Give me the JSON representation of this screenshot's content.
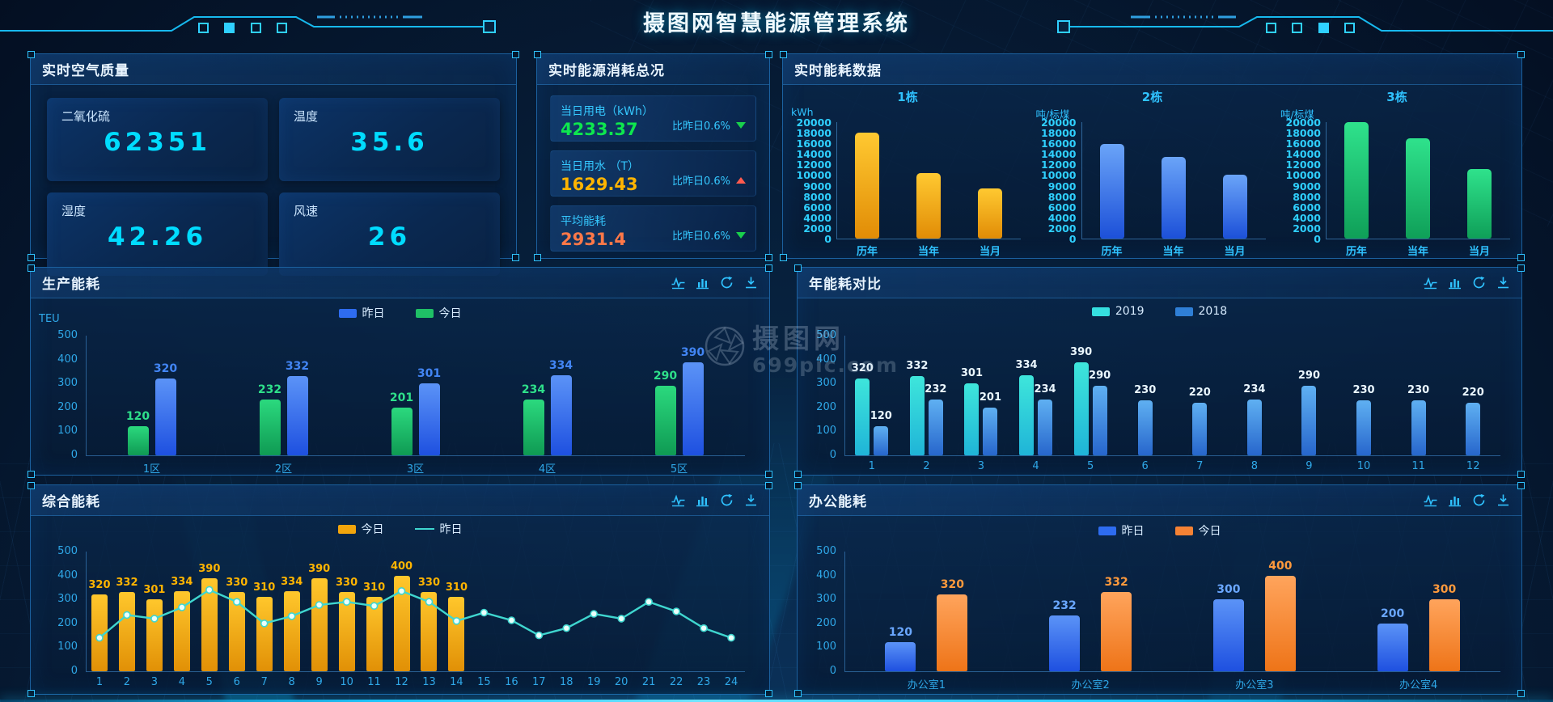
{
  "header": {
    "title": "摄图网智慧能源管理系统"
  },
  "watermark": {
    "brand": "摄图网",
    "site": "699pic.com"
  },
  "icons": {
    "toolbox": [
      "line-chart",
      "bar-chart",
      "refresh",
      "download"
    ]
  },
  "panels": {
    "air_quality": {
      "title": "实时空气质量",
      "value_color": "#00dcff",
      "cards": [
        {
          "label": "二氧化硫",
          "value": "62351"
        },
        {
          "label": "温度",
          "value": "35.6"
        },
        {
          "label": "湿度",
          "value": "42.26"
        },
        {
          "label": "风速",
          "value": "26"
        }
      ]
    },
    "energy_summary": {
      "title": "实时能源消耗总况",
      "rows": [
        {
          "label": "当日用电（kWh）",
          "value": "4233.37",
          "value_color": "#0ee64e",
          "compare_label": "比昨日0.6%",
          "trend": "down",
          "trend_color": "#19d04b"
        },
        {
          "label": "当日用水 （T）",
          "value": "1629.43",
          "value_color": "#ffb400",
          "compare_label": "比昨日0.6%",
          "trend": "up",
          "trend_color": "#ff5a4e"
        },
        {
          "label": "平均能耗",
          "value": "2931.4",
          "value_color": "#ff7848",
          "compare_label": "比昨日0.6%",
          "trend": "down",
          "trend_color": "#19d04b"
        }
      ]
    },
    "realtime_data": {
      "title": "实时能耗数据"
    },
    "production": {
      "title": "生产能耗"
    },
    "annual": {
      "title": "年能耗对比"
    },
    "comprehensive": {
      "title": "综合能耗"
    },
    "office": {
      "title": "办公能耗"
    }
  },
  "chart_data": [
    {
      "id": "building-1",
      "type": "bar",
      "title": "1栋",
      "ylabel": "kWh",
      "yticks": [
        0,
        2000,
        4000,
        6000,
        8000,
        9000,
        10000,
        12000,
        14000,
        16000,
        18000,
        20000
      ],
      "categories": [
        "历年",
        "当年",
        "当月"
      ],
      "values": [
        18000,
        10400,
        8700
      ],
      "bar_gradient": [
        "#ffc931",
        "#e18c06"
      ]
    },
    {
      "id": "building-2",
      "type": "bar",
      "title": "2栋",
      "ylabel": "吨/标煤",
      "yticks": [
        0,
        2000,
        4000,
        6000,
        8000,
        9000,
        10000,
        12000,
        14000,
        16000,
        18000,
        20000
      ],
      "categories": [
        "历年",
        "当年",
        "当月"
      ],
      "values": [
        15800,
        13400,
        10100
      ],
      "bar_gradient": [
        "#6aa4f8",
        "#1c50d8"
      ]
    },
    {
      "id": "building-3",
      "type": "bar",
      "title": "3栋",
      "ylabel": "吨/标煤",
      "yticks": [
        0,
        2000,
        4000,
        6000,
        8000,
        9000,
        10000,
        12000,
        14000,
        16000,
        18000,
        20000
      ],
      "categories": [
        "历年",
        "当年",
        "当月"
      ],
      "values": [
        20000,
        17000,
        11200
      ],
      "bar_gradient": [
        "#2fe28c",
        "#0f9f58"
      ]
    },
    {
      "id": "production",
      "type": "grouped-bar",
      "title": "生产能耗",
      "ylabel": "TEU",
      "yticks": [
        0,
        100,
        200,
        300,
        400,
        500
      ],
      "ylim": [
        0,
        500
      ],
      "categories": [
        "1区",
        "2区",
        "3区",
        "4区",
        "5区"
      ],
      "legend": [
        {
          "name": "昨日",
          "color": "#2e6cf0",
          "type": "bar"
        },
        {
          "name": "今日",
          "color": "#1fbf66",
          "type": "bar"
        }
      ],
      "series": [
        {
          "name": "今日",
          "gradient": [
            "#2bd97e",
            "#0f9a53"
          ],
          "label_color": "#2ee08a",
          "values": [
            120,
            232,
            201,
            234,
            290
          ]
        },
        {
          "name": "昨日",
          "gradient": [
            "#5b93f7",
            "#1e50e0"
          ],
          "label_color": "#4285f4",
          "values": [
            320,
            332,
            301,
            334,
            390
          ]
        }
      ]
    },
    {
      "id": "annual",
      "type": "grouped-bar",
      "title": "年能耗对比",
      "yticks": [
        0,
        100,
        200,
        300,
        400,
        500
      ],
      "ylim": [
        0,
        500
      ],
      "categories": [
        "1",
        "2",
        "3",
        "4",
        "5",
        "6",
        "7",
        "8",
        "9",
        "10",
        "11",
        "12"
      ],
      "legend": [
        {
          "name": "2019",
          "color": "#35dfe0",
          "type": "bar"
        },
        {
          "name": "2018",
          "color": "#2f7fd6",
          "type": "bar"
        }
      ],
      "series": [
        {
          "name": "2019",
          "gradient": [
            "#3ee6db",
            "#1fb4d8"
          ],
          "label_color": "#eaf7ff",
          "values": [
            320,
            332,
            301,
            334,
            390,
            null,
            null,
            null,
            null,
            null,
            null,
            null
          ]
        },
        {
          "name": "2018",
          "gradient": [
            "#5fb0f2",
            "#2766cc"
          ],
          "label_color": "#eaf7ff",
          "values": [
            120,
            232,
            201,
            234,
            290,
            230,
            220,
            234,
            290,
            230,
            230,
            220
          ]
        }
      ]
    },
    {
      "id": "comprehensive",
      "type": "bar-line",
      "title": "综合能耗",
      "yticks": [
        0,
        100,
        200,
        300,
        400,
        500
      ],
      "ylim": [
        0,
        500
      ],
      "categories": [
        "1",
        "2",
        "3",
        "4",
        "5",
        "6",
        "7",
        "8",
        "9",
        "10",
        "11",
        "12",
        "13",
        "14",
        "15",
        "16",
        "17",
        "18",
        "19",
        "20",
        "21",
        "22",
        "23",
        "24"
      ],
      "legend": [
        {
          "name": "今日",
          "color": "#f2a50c",
          "type": "bar"
        },
        {
          "name": "昨日",
          "color": "#3fd6cf",
          "type": "line"
        }
      ],
      "bars": {
        "name": "今日",
        "gradient": [
          "#ffc72c",
          "#e19006"
        ],
        "label_color": "#ffb400",
        "values": [
          320,
          332,
          301,
          334,
          390,
          330,
          310,
          334,
          390,
          330,
          310,
          400,
          330,
          310,
          null,
          null,
          null,
          null,
          null,
          null,
          null,
          null,
          null,
          null
        ]
      },
      "line": {
        "name": "昨日",
        "color": "#3fd6cf",
        "values": [
          140,
          235,
          220,
          267,
          340,
          290,
          200,
          230,
          277,
          290,
          273,
          335,
          290,
          210,
          245,
          213,
          150,
          180,
          240,
          220,
          290,
          250,
          180,
          140
        ]
      }
    },
    {
      "id": "office",
      "type": "grouped-bar",
      "title": "办公能耗",
      "yticks": [
        0,
        100,
        200,
        300,
        400,
        500
      ],
      "ylim": [
        0,
        500
      ],
      "categories": [
        "办公室1",
        "办公室2",
        "办公室3",
        "办公室4"
      ],
      "legend": [
        {
          "name": "昨日",
          "color": "#2e6cf0",
          "type": "bar"
        },
        {
          "name": "今日",
          "color": "#f58234",
          "type": "bar"
        }
      ],
      "series": [
        {
          "name": "昨日",
          "gradient": [
            "#5b93f7",
            "#1e50e0"
          ],
          "label_color": "#6aa7ff",
          "values": [
            120,
            232,
            300,
            200
          ]
        },
        {
          "name": "今日",
          "gradient": [
            "#ffa45c",
            "#ee7418"
          ],
          "label_color": "#ff9a3c",
          "values": [
            320,
            332,
            400,
            300
          ]
        }
      ]
    }
  ]
}
